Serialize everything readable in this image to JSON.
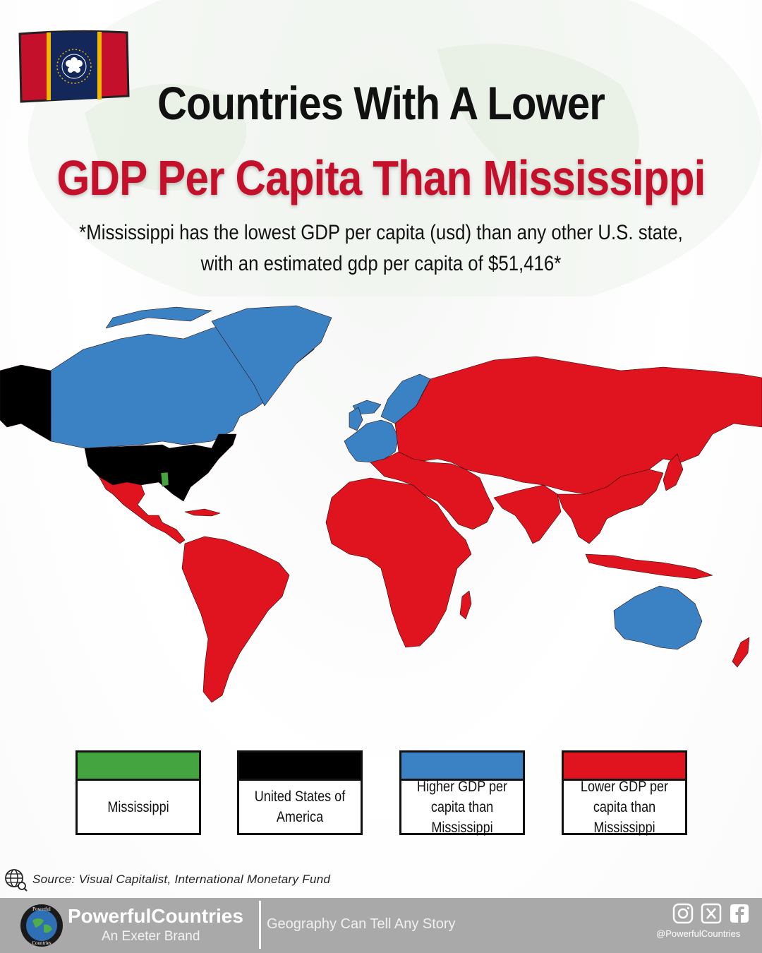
{
  "header": {
    "title_line1": "Countries With A Lower",
    "title_line2": "GDP Per Capita Than Mississippi",
    "subtitle": "*Mississippi has the lowest GDP per capita (usd) than any other U.S. state, with an estimated gdp per capita of $51,416*"
  },
  "flag": {
    "icon": "mississippi-flag-icon",
    "colors": {
      "red": "#c4102b",
      "blue": "#14275a",
      "gold": "#f2b800",
      "white": "#ffffff"
    }
  },
  "legend": [
    {
      "key": "mississippi",
      "label": "Mississippi",
      "color": "#43a440"
    },
    {
      "key": "usa",
      "label": "United States of America",
      "color": "#000000"
    },
    {
      "key": "higher",
      "label": "Higher GDP per capita than Mississippi",
      "color": "#3b82c4"
    },
    {
      "key": "lower",
      "label": "Lower GDP per capita than Mississippi",
      "color": "#e0141e"
    }
  ],
  "map": {
    "colors": {
      "higher": "#3b82c4",
      "lower": "#e0141e",
      "usa": "#000000",
      "mississippi": "#43a440"
    },
    "regions": {
      "canada": "higher",
      "greenland": "higher",
      "alaska": "usa",
      "usa": "usa",
      "mississippi": "mississippi",
      "latin-america": "lower",
      "western-europe": "higher",
      "scandinavia": "higher",
      "eastern-europe-russia": "lower",
      "africa": "lower",
      "middle-east": "lower",
      "asia": "lower",
      "australia": "higher",
      "new-zealand": "lower",
      "japan": "lower",
      "iceland": "higher"
    }
  },
  "source": {
    "text": "Source: Visual Capitalist, International Monetary Fund",
    "icon": "globe-search-icon"
  },
  "footer": {
    "brand_name": "PowerfulCountries",
    "brand_sub": "An Exeter Brand",
    "tagline": "Geography Can Tell Any Story",
    "handle": "@PowerfulCountries",
    "social_icons": [
      "instagram-icon",
      "x-icon",
      "facebook-icon"
    ],
    "logo_text_top": "Powerful",
    "logo_text_bottom": "Countries"
  }
}
